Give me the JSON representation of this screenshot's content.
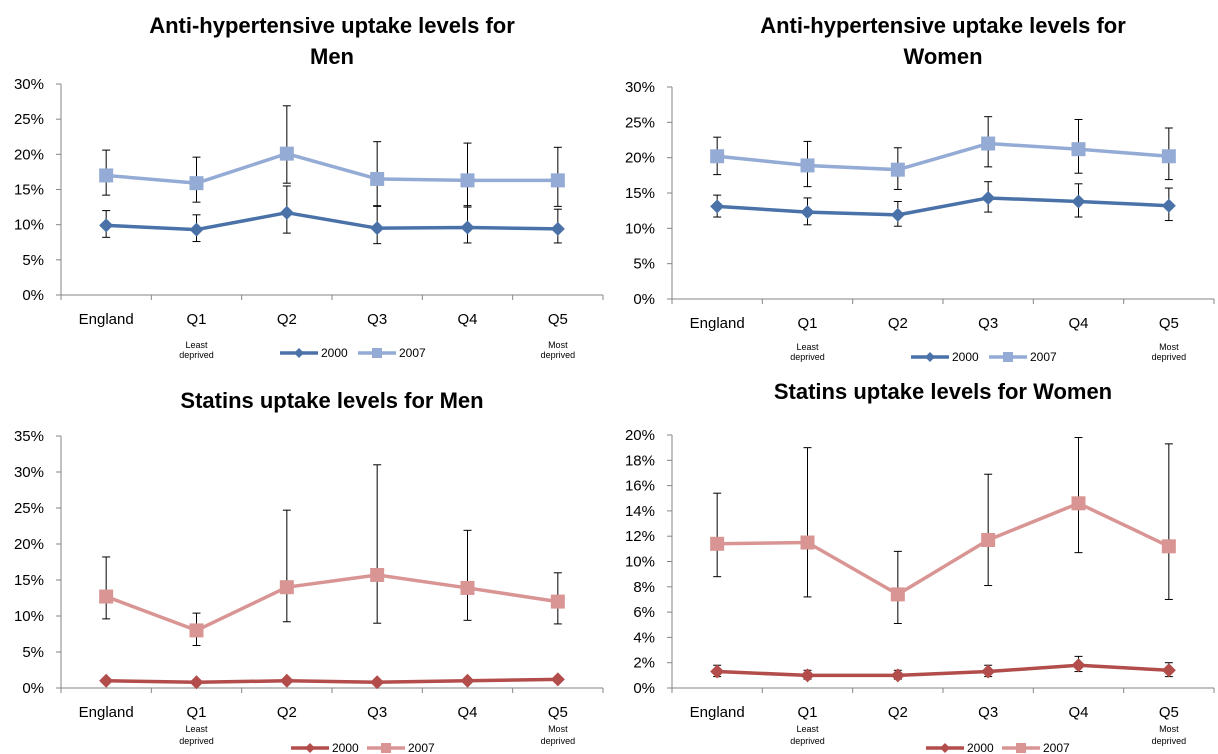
{
  "chart_data": [
    {
      "type": "line",
      "title": [
        "Anti-hypertensive uptake levels for",
        "Men"
      ],
      "categories": [
        "England",
        "Q1",
        "Q2",
        "Q3",
        "Q4",
        "Q5"
      ],
      "category_sublabels": [
        "",
        "Least deprived",
        "",
        "",
        "",
        "Most deprived"
      ],
      "ylim": [
        0,
        30
      ],
      "ystep": 5,
      "tick_suffix": "%",
      "tick_decimals": 0,
      "legend_position": "bottom",
      "series": [
        {
          "name": "2000",
          "color": "#4a72a8",
          "marker": "diamond",
          "values": [
            9.9,
            9.3,
            11.7,
            9.5,
            9.6,
            9.4
          ],
          "err_low": [
            8.2,
            7.6,
            8.8,
            7.3,
            7.4,
            7.4
          ],
          "err_high": [
            12.0,
            11.4,
            15.5,
            12.7,
            12.7,
            12.2
          ]
        },
        {
          "name": "2007",
          "color": "#94abd5",
          "marker": "square",
          "values": [
            17.0,
            15.9,
            20.1,
            16.5,
            16.3,
            16.3
          ],
          "err_low": [
            14.2,
            13.2,
            15.9,
            12.6,
            12.5,
            12.6
          ],
          "err_high": [
            20.6,
            19.6,
            26.9,
            21.8,
            21.6,
            21.0
          ]
        }
      ]
    },
    {
      "type": "line",
      "title": [
        "Anti-hypertensive uptake levels for",
        "Women"
      ],
      "categories": [
        "England",
        "Q1",
        "Q2",
        "Q3",
        "Q4",
        "Q5"
      ],
      "category_sublabels": [
        "",
        "Least deprived",
        "",
        "",
        "",
        "Most deprived"
      ],
      "ylim": [
        0,
        30
      ],
      "ystep": 5,
      "tick_suffix": "%",
      "tick_decimals": 0,
      "legend_position": "bottom",
      "series": [
        {
          "name": "2000",
          "color": "#4a72a8",
          "marker": "diamond",
          "values": [
            13.1,
            12.3,
            11.9,
            14.3,
            13.8,
            13.2
          ],
          "err_low": [
            11.6,
            10.5,
            10.3,
            12.3,
            11.6,
            11.1
          ],
          "err_high": [
            14.7,
            14.3,
            13.8,
            16.6,
            16.3,
            15.7
          ]
        },
        {
          "name": "2007",
          "color": "#94abd5",
          "marker": "square",
          "values": [
            20.2,
            18.9,
            18.3,
            22.0,
            21.2,
            20.2
          ],
          "err_low": [
            17.6,
            15.9,
            15.5,
            18.7,
            17.8,
            16.9
          ],
          "err_high": [
            22.9,
            22.3,
            21.4,
            25.8,
            25.4,
            24.2
          ]
        }
      ]
    },
    {
      "type": "line",
      "title": [
        "Statins uptake levels for Men"
      ],
      "categories": [
        "England",
        "Q1",
        "Q2",
        "Q3",
        "Q4",
        "Q5"
      ],
      "category_sublabels": [
        "",
        "Least deprived",
        "",
        "",
        "",
        "Most deprived"
      ],
      "ylim": [
        0,
        35
      ],
      "ystep": 5,
      "tick_suffix": "%",
      "tick_decimals": 0,
      "legend_position": "bottom",
      "series": [
        {
          "name": "2000",
          "color": "#b24d4b",
          "marker": "diamond",
          "values": [
            1.0,
            0.8,
            1.0,
            0.8,
            1.0,
            1.2
          ],
          "err_low": [
            null,
            null,
            null,
            null,
            null,
            null
          ],
          "err_high": [
            null,
            null,
            null,
            null,
            null,
            null
          ]
        },
        {
          "name": "2007",
          "color": "#d99593",
          "marker": "square",
          "values": [
            12.7,
            8.0,
            14.0,
            15.7,
            13.9,
            12.0
          ],
          "err_low": [
            9.6,
            5.9,
            9.2,
            9.0,
            9.4,
            8.9
          ],
          "err_high": [
            18.2,
            10.4,
            24.7,
            31.0,
            21.9,
            16.0
          ]
        }
      ]
    },
    {
      "type": "line",
      "title": [
        "Statins uptake levels for Women"
      ],
      "categories": [
        "England",
        "Q1",
        "Q2",
        "Q3",
        "Q4",
        "Q5"
      ],
      "category_sublabels": [
        "",
        "Least deprived",
        "",
        "",
        "",
        "Most deprived"
      ],
      "ylim": [
        0,
        20
      ],
      "ystep": 2,
      "tick_suffix": "%",
      "tick_decimals": 0,
      "legend_position": "bottom",
      "series": [
        {
          "name": "2000",
          "color": "#b24d4b",
          "marker": "diamond",
          "values": [
            1.3,
            1.0,
            1.0,
            1.3,
            1.8,
            1.4
          ],
          "err_low": [
            0.9,
            0.7,
            0.7,
            0.9,
            1.3,
            0.9
          ],
          "err_high": [
            1.8,
            1.4,
            1.4,
            1.8,
            2.5,
            2.0
          ]
        },
        {
          "name": "2007",
          "color": "#d99593",
          "marker": "square",
          "values": [
            11.4,
            11.5,
            7.4,
            11.7,
            14.6,
            11.2
          ],
          "err_low": [
            8.8,
            7.2,
            5.1,
            8.1,
            10.7,
            7.0
          ],
          "err_high": [
            15.4,
            19.0,
            10.8,
            16.9,
            19.8,
            19.3
          ]
        }
      ]
    }
  ]
}
